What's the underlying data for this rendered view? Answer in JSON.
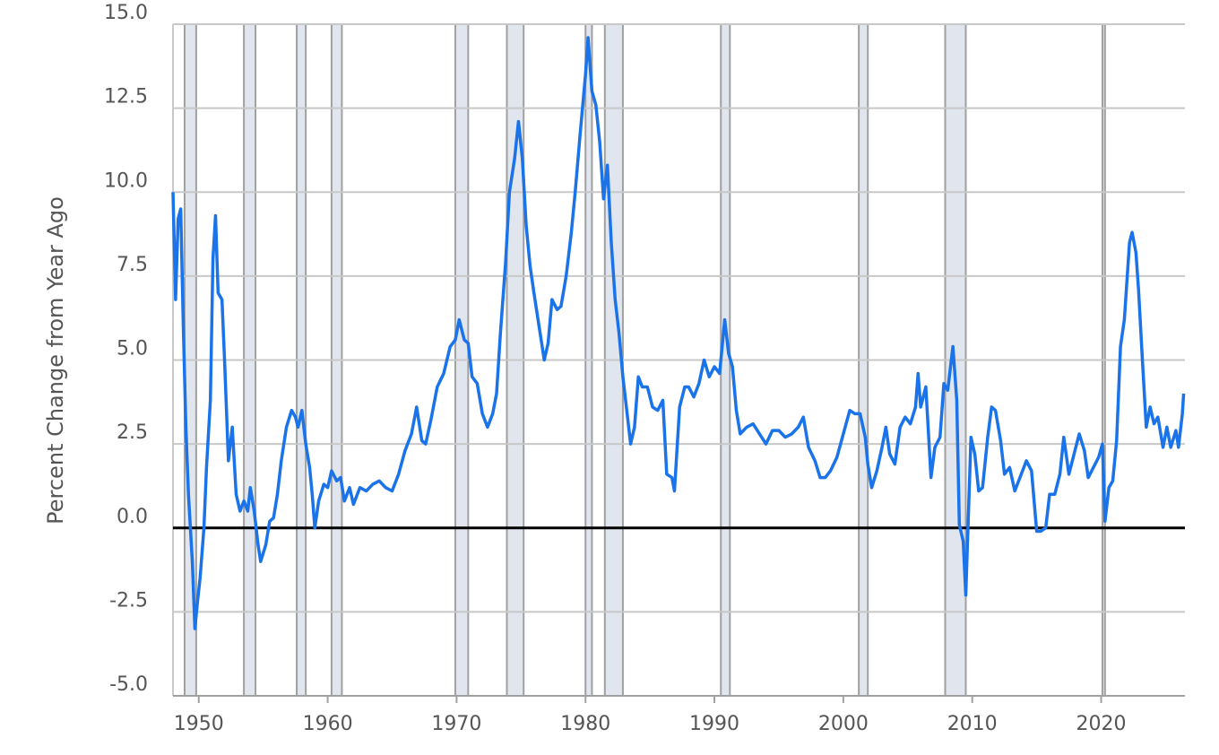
{
  "chart_data": {
    "type": "line",
    "y_label": "Percent Change from Year Ago",
    "color": "#1a73e8",
    "zero_line": true,
    "grid": true,
    "xlim": [
      1948.0,
      2026.5
    ],
    "ylim": [
      -5,
      15
    ],
    "xticks": [
      1950,
      1960,
      1970,
      1980,
      1990,
      2000,
      2010,
      2020
    ],
    "yticks": [
      {
        "value": -5,
        "label": "-5.0"
      },
      -2.5,
      {
        "value": 0,
        "label": "0.0"
      },
      2.5,
      {
        "value": 5,
        "label": "5.0"
      },
      7.5,
      {
        "value": 10,
        "label": "10.0"
      },
      12.5,
      {
        "value": 15,
        "label": "15.0"
      }
    ],
    "shaded_ranges": [
      [
        1948.9,
        1949.8
      ],
      [
        1953.5,
        1954.4
      ],
      [
        1957.6,
        1958.3
      ],
      [
        1960.3,
        1961.1
      ],
      [
        1969.9,
        1970.9
      ],
      [
        1973.9,
        1975.2
      ],
      [
        1980.0,
        1980.5
      ],
      [
        1981.5,
        1982.9
      ],
      [
        1990.5,
        1991.2
      ],
      [
        2001.2,
        2001.9
      ],
      [
        2007.9,
        2009.5
      ],
      [
        2020.1,
        2020.3
      ]
    ],
    "x": [
      1948.0,
      1948.2,
      1948.4,
      1948.6,
      1948.8,
      1949.0,
      1949.2,
      1949.5,
      1949.7,
      1949.9,
      1950.1,
      1950.4,
      1950.6,
      1950.9,
      1951.1,
      1951.3,
      1951.5,
      1951.8,
      1952.0,
      1952.3,
      1952.6,
      1952.9,
      1953.2,
      1953.5,
      1953.8,
      1954.0,
      1954.3,
      1954.6,
      1954.8,
      1955.2,
      1955.5,
      1955.8,
      1956.1,
      1956.4,
      1956.8,
      1957.2,
      1957.5,
      1957.7,
      1958.0,
      1958.3,
      1958.6,
      1958.8,
      1959.0,
      1959.3,
      1959.7,
      1960.0,
      1960.3,
      1960.7,
      1961.0,
      1961.3,
      1961.7,
      1962.0,
      1962.5,
      1963.0,
      1963.5,
      1964.0,
      1964.5,
      1965.0,
      1965.5,
      1966.0,
      1966.5,
      1966.9,
      1967.3,
      1967.6,
      1968.0,
      1968.5,
      1969.0,
      1969.5,
      1969.9,
      1970.2,
      1970.6,
      1970.9,
      1971.2,
      1971.6,
      1972.0,
      1972.4,
      1972.8,
      1973.1,
      1973.4,
      1973.8,
      1974.1,
      1974.5,
      1974.8,
      1975.1,
      1975.4,
      1975.7,
      1976.0,
      1976.4,
      1976.8,
      1977.1,
      1977.4,
      1977.8,
      1978.1,
      1978.5,
      1978.9,
      1979.2,
      1979.6,
      1980.0,
      1980.2,
      1980.5,
      1980.8,
      1981.1,
      1981.4,
      1981.7,
      1982.0,
      1982.3,
      1982.6,
      1982.9,
      1983.2,
      1983.5,
      1983.8,
      1984.1,
      1984.4,
      1984.8,
      1985.2,
      1985.6,
      1986.0,
      1986.3,
      1986.7,
      1986.9,
      1987.3,
      1987.7,
      1988.0,
      1988.4,
      1988.8,
      1989.2,
      1989.6,
      1990.0,
      1990.4,
      1990.8,
      1991.1,
      1991.4,
      1991.7,
      1992.0,
      1992.5,
      1993.0,
      1993.5,
      1994.0,
      1994.5,
      1995.0,
      1995.5,
      1996.0,
      1996.5,
      1996.9,
      1997.3,
      1997.8,
      1998.2,
      1998.6,
      1999.0,
      1999.5,
      2000.0,
      2000.5,
      2000.9,
      2001.3,
      2001.7,
      2001.9,
      2002.2,
      2002.6,
      2003.0,
      2003.3,
      2003.6,
      2004.0,
      2004.4,
      2004.8,
      2005.2,
      2005.6,
      2005.8,
      2006.0,
      2006.4,
      2006.8,
      2007.1,
      2007.5,
      2007.8,
      2008.1,
      2008.5,
      2008.8,
      2009.0,
      2009.3,
      2009.5,
      2009.9,
      2010.2,
      2010.5,
      2010.8,
      2011.2,
      2011.5,
      2011.8,
      2012.2,
      2012.5,
      2012.9,
      2013.3,
      2013.7,
      2014.2,
      2014.6,
      2015.0,
      2015.3,
      2015.7,
      2016.0,
      2016.4,
      2016.8,
      2017.1,
      2017.5,
      2017.9,
      2018.3,
      2018.7,
      2019.0,
      2019.4,
      2019.8,
      2020.1,
      2020.3,
      2020.6,
      2020.9,
      2021.2,
      2021.5,
      2021.8,
      2022.2,
      2022.4,
      2022.7,
      2022.9,
      2023.2,
      2023.5,
      2023.8,
      2024.1,
      2024.4,
      2024.8,
      2025.1,
      2025.4,
      2025.8,
      2026.0,
      2026.3,
      2026.4
    ],
    "values": [
      10.0,
      6.8,
      9.2,
      9.5,
      6.0,
      3.0,
      1.0,
      -1.0,
      -3.0,
      -2.2,
      -1.5,
      0.0,
      1.8,
      3.8,
      8.0,
      9.3,
      7.0,
      6.8,
      5.0,
      2.0,
      3.0,
      1.0,
      0.5,
      0.8,
      0.5,
      1.2,
      0.5,
      -0.5,
      -1.0,
      -0.5,
      0.2,
      0.3,
      1.0,
      2.0,
      3.0,
      3.5,
      3.3,
      3.0,
      3.5,
      2.5,
      1.8,
      1.0,
      0.0,
      0.8,
      1.3,
      1.2,
      1.7,
      1.4,
      1.5,
      0.8,
      1.2,
      0.7,
      1.2,
      1.1,
      1.3,
      1.4,
      1.2,
      1.1,
      1.6,
      2.3,
      2.8,
      3.6,
      2.6,
      2.5,
      3.2,
      4.2,
      4.6,
      5.4,
      5.6,
      6.2,
      5.6,
      5.5,
      4.5,
      4.3,
      3.4,
      3.0,
      3.4,
      4.0,
      5.8,
      7.9,
      10.0,
      11.0,
      12.1,
      11.0,
      9.0,
      7.8,
      7.0,
      6.0,
      5.0,
      5.5,
      6.8,
      6.5,
      6.6,
      7.5,
      8.8,
      10.0,
      11.8,
      13.5,
      14.6,
      13.0,
      12.6,
      11.5,
      9.8,
      10.8,
      8.5,
      6.8,
      5.8,
      4.5,
      3.5,
      2.5,
      3.0,
      4.5,
      4.2,
      4.2,
      3.6,
      3.5,
      3.8,
      1.6,
      1.5,
      1.1,
      3.6,
      4.2,
      4.2,
      3.9,
      4.3,
      5.0,
      4.5,
      4.8,
      4.6,
      6.2,
      5.2,
      4.8,
      3.5,
      2.8,
      3.0,
      3.1,
      2.8,
      2.5,
      2.9,
      2.9,
      2.7,
      2.8,
      3.0,
      3.3,
      2.4,
      2.0,
      1.5,
      1.5,
      1.7,
      2.1,
      2.8,
      3.5,
      3.4,
      3.4,
      2.7,
      1.9,
      1.2,
      1.7,
      2.4,
      3.0,
      2.2,
      1.9,
      3.0,
      3.3,
      3.1,
      3.6,
      4.6,
      3.6,
      4.2,
      1.5,
      2.4,
      2.7,
      4.3,
      4.1,
      5.4,
      3.8,
      0.1,
      -0.4,
      -2.0,
      2.7,
      2.2,
      1.1,
      1.2,
      2.7,
      3.6,
      3.5,
      2.6,
      1.6,
      1.8,
      1.1,
      1.5,
      2.0,
      1.7,
      -0.1,
      -0.1,
      0.0,
      1.0,
      1.0,
      1.6,
      2.7,
      1.6,
      2.2,
      2.8,
      2.3,
      1.5,
      1.8,
      2.1,
      2.5,
      0.2,
      1.2,
      1.4,
      2.6,
      5.4,
      6.2,
      8.5,
      8.8,
      8.2,
      7.1,
      5.0,
      3.0,
      3.6,
      3.1,
      3.3,
      2.4,
      3.0,
      2.4,
      2.9,
      2.4,
      3.4,
      4.0
    ]
  }
}
